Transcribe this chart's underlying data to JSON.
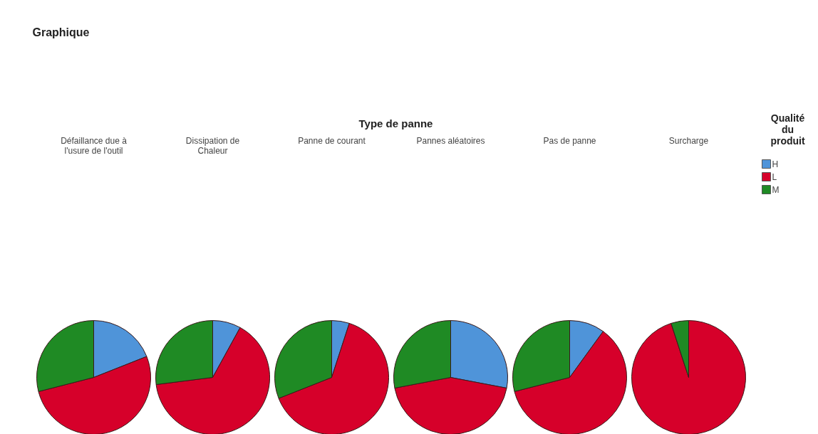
{
  "chart_data": {
    "type": "pie",
    "title": "Graphique",
    "xlabel": "Type de panne",
    "legend_title": "Qualité du produit",
    "legend": "right",
    "categories": [
      "H",
      "L",
      "M"
    ],
    "colors": [
      "#4f94d9",
      "#d6002a",
      "#1f8a24"
    ],
    "series": [
      {
        "name": "Défaillance due à l'usure de l'outil",
        "values": [
          19,
          52,
          29
        ]
      },
      {
        "name": "Dissipation de Chaleur",
        "values": [
          8,
          65,
          27
        ]
      },
      {
        "name": "Panne de courant",
        "values": [
          5,
          64,
          31
        ]
      },
      {
        "name": "Pannes aléatoires",
        "values": [
          28,
          44,
          28
        ]
      },
      {
        "name": "Pas de panne",
        "values": [
          10,
          61,
          29
        ]
      },
      {
        "name": "Surcharge",
        "values": [
          0,
          95,
          5
        ]
      }
    ]
  }
}
